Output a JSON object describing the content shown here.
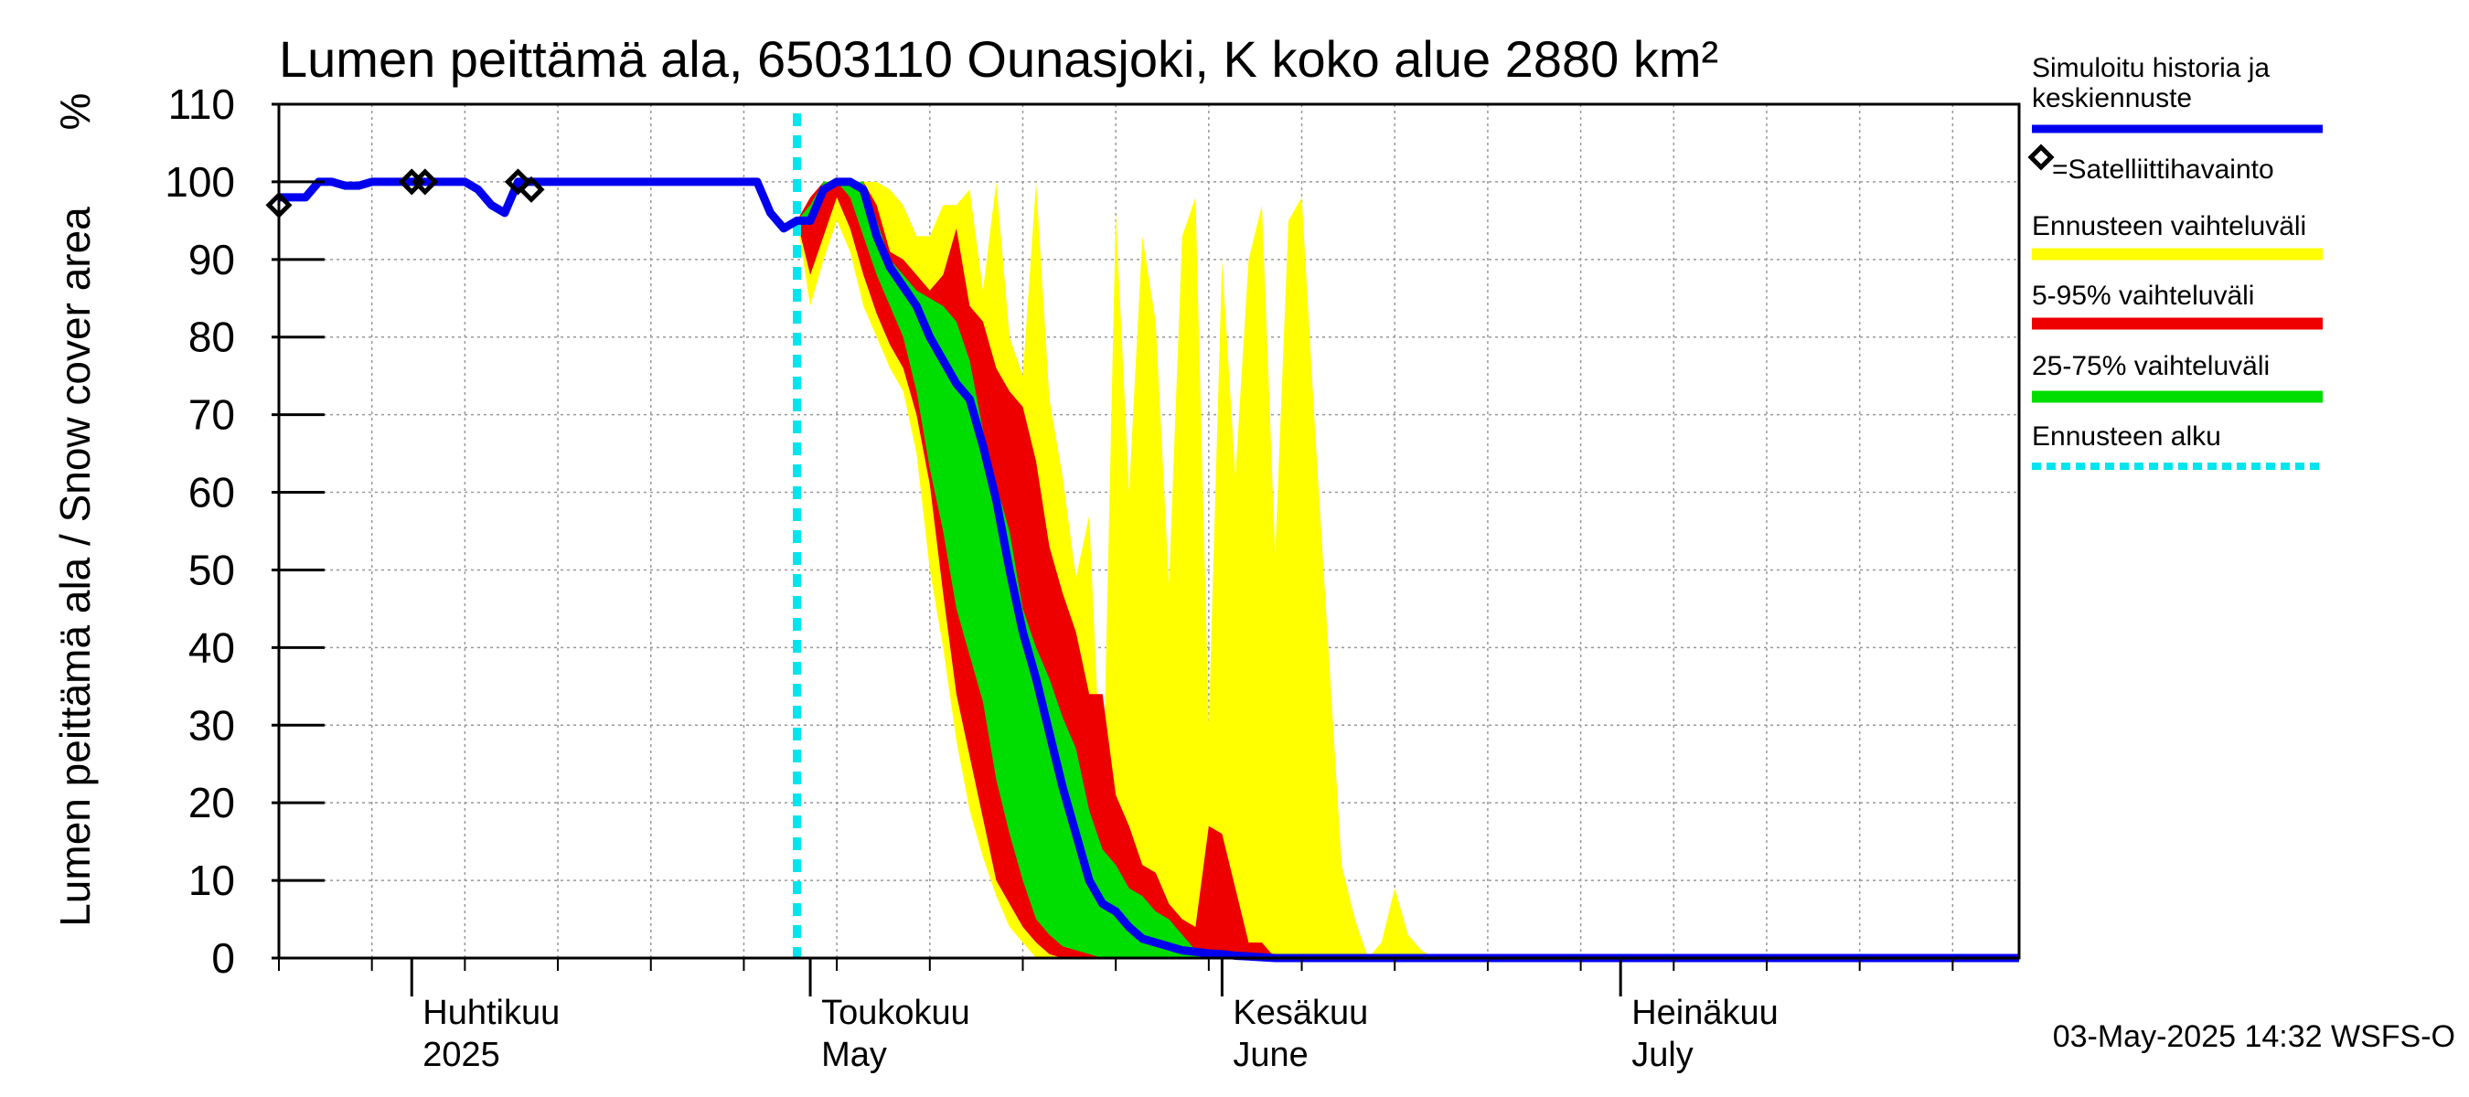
{
  "chart_data": {
    "type": "area",
    "title": "Lumen peittämä ala, 6503110 Ounasjoki, K koko alue 2880 km²",
    "ylabel": "Lumen peittämä ala / Snow cover area",
    "yunit": "%",
    "ylim": [
      0,
      110
    ],
    "yticks": [
      0,
      10,
      20,
      30,
      40,
      50,
      60,
      70,
      80,
      90,
      100,
      110
    ],
    "xlim": [
      "2025-03-22",
      "2025-07-31"
    ],
    "grid": true,
    "month_labels": [
      {
        "date": "2025-04-01",
        "fi": "Huhtikuu",
        "en": "2025"
      },
      {
        "date": "2025-05-01",
        "fi": "Toukokuu",
        "en": "May"
      },
      {
        "date": "2025-06-01",
        "fi": "Kesäkuu",
        "en": "June"
      },
      {
        "date": "2025-07-01",
        "fi": "Heinäkuu",
        "en": "July"
      }
    ],
    "forecast_start": "2025-04-30",
    "footer": "03-May-2025 14:32 WSFS-O",
    "legend_position": "right",
    "legend": {
      "simulated": "Simuloitu historia ja keskiennuste",
      "satellite": "=Satelliittihavainto",
      "range": "Ennusteen vaihteluväli",
      "p5_95": "5-95% vaihteluväli",
      "p25_75": "25-75% vaihteluväli",
      "forecast_start": "Ennusteen alku"
    },
    "colors": {
      "simulated": "#0000ee",
      "range": "#ffff00",
      "p5_95": "#ee0000",
      "p25_75": "#00dd00",
      "forecast_start": "#00e5ee",
      "grid": "#999999"
    },
    "series": [
      {
        "name": "Simuloitu historia ja keskiennuste",
        "points": [
          [
            "2025-03-22",
            98
          ],
          [
            "2025-03-24",
            98
          ],
          [
            "2025-03-25",
            100
          ],
          [
            "2025-03-26",
            100
          ],
          [
            "2025-03-27",
            99.5
          ],
          [
            "2025-03-28",
            99.5
          ],
          [
            "2025-03-29",
            100
          ],
          [
            "2025-04-05",
            100
          ],
          [
            "2025-04-06",
            99
          ],
          [
            "2025-04-07",
            97
          ],
          [
            "2025-04-08",
            96
          ],
          [
            "2025-04-09",
            100
          ],
          [
            "2025-04-27",
            100
          ],
          [
            "2025-04-28",
            96
          ],
          [
            "2025-04-29",
            94
          ],
          [
            "2025-04-30",
            95
          ],
          [
            "2025-05-01",
            95
          ],
          [
            "2025-05-02",
            99
          ],
          [
            "2025-05-03",
            100
          ],
          [
            "2025-05-04",
            100
          ],
          [
            "2025-05-05",
            99
          ],
          [
            "2025-05-06",
            93
          ],
          [
            "2025-05-07",
            89
          ],
          [
            "2025-05-08",
            86.5
          ],
          [
            "2025-05-09",
            84
          ],
          [
            "2025-05-10",
            80
          ],
          [
            "2025-05-11",
            77
          ],
          [
            "2025-05-12",
            74
          ],
          [
            "2025-05-13",
            72
          ],
          [
            "2025-05-14",
            66
          ],
          [
            "2025-05-15",
            59
          ],
          [
            "2025-05-16",
            50
          ],
          [
            "2025-05-17",
            42
          ],
          [
            "2025-05-18",
            36
          ],
          [
            "2025-05-19",
            29
          ],
          [
            "2025-05-20",
            22
          ],
          [
            "2025-05-21",
            16
          ],
          [
            "2025-05-22",
            10
          ],
          [
            "2025-05-23",
            7
          ],
          [
            "2025-05-24",
            6
          ],
          [
            "2025-05-25",
            4
          ],
          [
            "2025-05-26",
            2.5
          ],
          [
            "2025-05-27",
            2
          ],
          [
            "2025-05-28",
            1.5
          ],
          [
            "2025-05-29",
            1
          ],
          [
            "2025-05-30",
            0.8
          ],
          [
            "2025-05-31",
            0.6
          ],
          [
            "2025-06-01",
            0.5
          ],
          [
            "2025-06-02",
            0.3
          ],
          [
            "2025-06-03",
            0.2
          ],
          [
            "2025-06-04",
            0.1
          ],
          [
            "2025-06-05",
            0
          ],
          [
            "2025-07-31",
            0
          ]
        ]
      },
      {
        "name": "Ennusteen vaihteluväli",
        "upper": [
          [
            "2025-04-30",
            95
          ],
          [
            "2025-05-01",
            96
          ],
          [
            "2025-05-02",
            100
          ],
          [
            "2025-05-05",
            100
          ],
          [
            "2025-05-06",
            100
          ],
          [
            "2025-05-07",
            99
          ],
          [
            "2025-05-08",
            97
          ],
          [
            "2025-05-09",
            93
          ],
          [
            "2025-05-10",
            93
          ],
          [
            "2025-05-11",
            97
          ],
          [
            "2025-05-12",
            97
          ],
          [
            "2025-05-13",
            99
          ],
          [
            "2025-05-14",
            86
          ],
          [
            "2025-05-15",
            100
          ],
          [
            "2025-05-16",
            80
          ],
          [
            "2025-05-17",
            75
          ],
          [
            "2025-05-18",
            100
          ],
          [
            "2025-05-19",
            72
          ],
          [
            "2025-05-20",
            62
          ],
          [
            "2025-05-21",
            49
          ],
          [
            "2025-05-22",
            57
          ],
          [
            "2025-05-23",
            18
          ],
          [
            "2025-05-24",
            96
          ],
          [
            "2025-05-25",
            60
          ],
          [
            "2025-05-26",
            93
          ],
          [
            "2025-05-27",
            82
          ],
          [
            "2025-05-28",
            48
          ],
          [
            "2025-05-29",
            93
          ],
          [
            "2025-05-30",
            98
          ],
          [
            "2025-05-31",
            30
          ],
          [
            "2025-06-01",
            90
          ],
          [
            "2025-06-02",
            62
          ],
          [
            "2025-06-03",
            90
          ],
          [
            "2025-06-04",
            97
          ],
          [
            "2025-06-05",
            52
          ],
          [
            "2025-06-06",
            95
          ],
          [
            "2025-06-07",
            98
          ],
          [
            "2025-06-08",
            68
          ],
          [
            "2025-06-09",
            40
          ],
          [
            "2025-06-10",
            12
          ],
          [
            "2025-06-11",
            5
          ],
          [
            "2025-06-12",
            0
          ],
          [
            "2025-06-13",
            2
          ],
          [
            "2025-06-14",
            9
          ],
          [
            "2025-06-15",
            3
          ],
          [
            "2025-06-16",
            1
          ],
          [
            "2025-06-17",
            0
          ],
          [
            "2025-07-31",
            0
          ]
        ],
        "lower": [
          [
            "2025-04-30",
            95
          ],
          [
            "2025-05-01",
            84
          ],
          [
            "2025-05-02",
            90
          ],
          [
            "2025-05-03",
            95
          ],
          [
            "2025-05-04",
            91
          ],
          [
            "2025-05-05",
            84
          ],
          [
            "2025-05-06",
            80
          ],
          [
            "2025-05-07",
            76
          ],
          [
            "2025-05-08",
            73
          ],
          [
            "2025-05-09",
            65
          ],
          [
            "2025-05-10",
            50
          ],
          [
            "2025-05-11",
            40
          ],
          [
            "2025-05-12",
            28
          ],
          [
            "2025-05-13",
            19
          ],
          [
            "2025-05-14",
            13
          ],
          [
            "2025-05-15",
            8
          ],
          [
            "2025-05-16",
            4
          ],
          [
            "2025-05-17",
            2
          ],
          [
            "2025-05-18",
            0
          ],
          [
            "2025-07-31",
            0
          ]
        ]
      },
      {
        "name": "5-95% vaihteluväli",
        "upper": [
          [
            "2025-04-30",
            95
          ],
          [
            "2025-05-01",
            98
          ],
          [
            "2025-05-02",
            100
          ],
          [
            "2025-05-05",
            100
          ],
          [
            "2025-05-06",
            97
          ],
          [
            "2025-05-07",
            91
          ],
          [
            "2025-05-08",
            90
          ],
          [
            "2025-05-09",
            88
          ],
          [
            "2025-05-10",
            86
          ],
          [
            "2025-05-11",
            88
          ],
          [
            "2025-05-12",
            94
          ],
          [
            "2025-05-13",
            84
          ],
          [
            "2025-05-14",
            82
          ],
          [
            "2025-05-15",
            76
          ],
          [
            "2025-05-16",
            73
          ],
          [
            "2025-05-17",
            71
          ],
          [
            "2025-05-18",
            64
          ],
          [
            "2025-05-19",
            53
          ],
          [
            "2025-05-20",
            47
          ],
          [
            "2025-05-21",
            42
          ],
          [
            "2025-05-22",
            34
          ],
          [
            "2025-05-23",
            34
          ],
          [
            "2025-05-24",
            21
          ],
          [
            "2025-05-25",
            17
          ],
          [
            "2025-05-26",
            12
          ],
          [
            "2025-05-27",
            11
          ],
          [
            "2025-05-28",
            7
          ],
          [
            "2025-05-29",
            5
          ],
          [
            "2025-05-30",
            4
          ],
          [
            "2025-05-31",
            17
          ],
          [
            "2025-06-01",
            16
          ],
          [
            "2025-06-02",
            9
          ],
          [
            "2025-06-03",
            2
          ],
          [
            "2025-06-04",
            2
          ],
          [
            "2025-06-05",
            0
          ],
          [
            "2025-07-31",
            0
          ]
        ],
        "lower": [
          [
            "2025-04-30",
            95
          ],
          [
            "2025-05-01",
            88
          ],
          [
            "2025-05-02",
            93
          ],
          [
            "2025-05-03",
            98
          ],
          [
            "2025-05-04",
            94
          ],
          [
            "2025-05-05",
            88
          ],
          [
            "2025-05-06",
            83
          ],
          [
            "2025-05-07",
            79
          ],
          [
            "2025-05-08",
            76
          ],
          [
            "2025-05-09",
            70
          ],
          [
            "2025-05-10",
            61
          ],
          [
            "2025-05-11",
            47
          ],
          [
            "2025-05-12",
            34
          ],
          [
            "2025-05-13",
            26
          ],
          [
            "2025-05-14",
            18
          ],
          [
            "2025-05-15",
            10
          ],
          [
            "2025-05-16",
            7
          ],
          [
            "2025-05-17",
            4
          ],
          [
            "2025-05-18",
            2
          ],
          [
            "2025-05-19",
            0.5
          ],
          [
            "2025-05-20",
            0
          ],
          [
            "2025-07-31",
            0
          ]
        ]
      },
      {
        "name": "25-75% vaihteluväli",
        "upper": [
          [
            "2025-04-30",
            95
          ],
          [
            "2025-05-01",
            97
          ],
          [
            "2025-05-02",
            100
          ],
          [
            "2025-05-05",
            100
          ],
          [
            "2025-05-06",
            95
          ],
          [
            "2025-05-07",
            90
          ],
          [
            "2025-05-08",
            88
          ],
          [
            "2025-05-09",
            86
          ],
          [
            "2025-05-10",
            85
          ],
          [
            "2025-05-11",
            84
          ],
          [
            "2025-05-12",
            82
          ],
          [
            "2025-05-13",
            77
          ],
          [
            "2025-05-14",
            68
          ],
          [
            "2025-05-15",
            61
          ],
          [
            "2025-05-16",
            55
          ],
          [
            "2025-05-17",
            45
          ],
          [
            "2025-05-18",
            40
          ],
          [
            "2025-05-19",
            36
          ],
          [
            "2025-05-20",
            31
          ],
          [
            "2025-05-21",
            27
          ],
          [
            "2025-05-22",
            19
          ],
          [
            "2025-05-23",
            14
          ],
          [
            "2025-05-24",
            12
          ],
          [
            "2025-05-25",
            9
          ],
          [
            "2025-05-26",
            8
          ],
          [
            "2025-05-27",
            6
          ],
          [
            "2025-05-28",
            5
          ],
          [
            "2025-05-29",
            3
          ],
          [
            "2025-05-30",
            1
          ],
          [
            "2025-05-31",
            0
          ],
          [
            "2025-07-31",
            0
          ]
        ],
        "lower": [
          [
            "2025-04-30",
            95
          ],
          [
            "2025-05-01",
            95
          ],
          [
            "2025-05-02",
            99
          ],
          [
            "2025-05-03",
            100
          ],
          [
            "2025-05-04",
            98
          ],
          [
            "2025-05-05",
            93
          ],
          [
            "2025-05-06",
            88
          ],
          [
            "2025-05-07",
            84
          ],
          [
            "2025-05-08",
            80
          ],
          [
            "2025-05-09",
            73
          ],
          [
            "2025-05-10",
            63
          ],
          [
            "2025-05-11",
            55
          ],
          [
            "2025-05-12",
            45
          ],
          [
            "2025-05-13",
            39
          ],
          [
            "2025-05-14",
            33
          ],
          [
            "2025-05-15",
            23
          ],
          [
            "2025-05-16",
            16
          ],
          [
            "2025-05-17",
            10
          ],
          [
            "2025-05-18",
            5
          ],
          [
            "2025-05-19",
            3
          ],
          [
            "2025-05-20",
            1.5
          ],
          [
            "2025-05-21",
            1
          ],
          [
            "2025-05-22",
            0.5
          ],
          [
            "2025-05-23",
            0
          ],
          [
            "2025-07-31",
            0
          ]
        ]
      },
      {
        "name": "=Satelliittihavainto",
        "points": [
          [
            "2025-03-22",
            97
          ],
          [
            "2025-04-01",
            100
          ],
          [
            "2025-04-02",
            100
          ],
          [
            "2025-04-09",
            100
          ],
          [
            "2025-04-10",
            99
          ]
        ]
      }
    ]
  }
}
